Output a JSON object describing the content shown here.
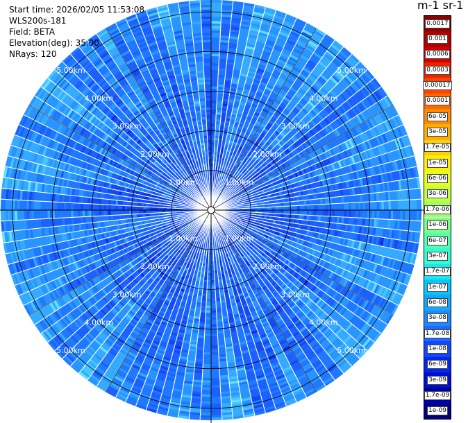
{
  "header": {
    "start_time": "Start time: 2026/02/05 11:53:08",
    "instrument": "WLS200s-181",
    "field": "Field: BETA",
    "elevation": "Elevation(deg): 35.00",
    "nrays": "NRays: 120"
  },
  "colorbar": {
    "title": "m-1 sr-1",
    "labels": [
      "0.0017",
      "0.001",
      "0.0006",
      "0.0003",
      "0.00017",
      "0.0001",
      "6e-05",
      "3e-05",
      "1.7e-05",
      "1e-05",
      "6e-06",
      "3e-06",
      "1.7e-06",
      "1e-06",
      "6e-07",
      "3e-07",
      "1.7e-07",
      "1e-07",
      "6e-08",
      "3e-08",
      "1.7e-08",
      "1e-08",
      "6e-09",
      "3e-09",
      "1.7e-09",
      "1e-09"
    ],
    "colors": [
      "#8b0000",
      "#b00000",
      "#d40000",
      "#f02000",
      "#ff4400",
      "#ff6a00",
      "#ff8c00",
      "#ffae00",
      "#ffd000",
      "#ffee00",
      "#e6ff1a",
      "#c0ff40",
      "#9cff62",
      "#78ff86",
      "#52ffac",
      "#2effd0",
      "#14e8f0",
      "#00c8ff",
      "#10a8ff",
      "#2088ff",
      "#2068ff",
      "#1048ff",
      "#0028f0",
      "#0010d0",
      "#0000a8",
      "#000080"
    ]
  },
  "chart_data": {
    "type": "heatmap",
    "projection": "polar",
    "variable": "BETA",
    "elevation_deg": 35.0,
    "n_rays": 120,
    "max_range_km": 5.3,
    "range_rings_km": [
      1.0,
      2.0,
      3.0,
      4.0,
      5.0
    ],
    "range_labels": [
      "1.00km",
      "2.00km",
      "3.00km",
      "4.00km",
      "5.00km"
    ],
    "label_azimuths_deg": [
      45,
      135,
      225,
      315
    ],
    "azimuth_grid_deg": [
      0,
      30,
      60,
      90,
      120,
      150,
      180,
      210,
      240,
      270,
      300,
      330
    ],
    "dominant_value_range": [
      "1e-08",
      "1e-07"
    ],
    "color_scale": "log"
  }
}
